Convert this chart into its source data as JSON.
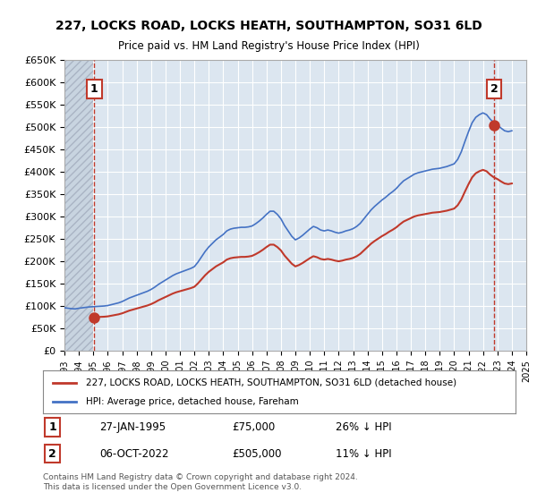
{
  "title": "227, LOCKS ROAD, LOCKS HEATH, SOUTHAMPTON, SO31 6LD",
  "subtitle": "Price paid vs. HM Land Registry's House Price Index (HPI)",
  "background_color": "#ffffff",
  "plot_bg_color": "#dce6f0",
  "hatch_color": "#c0c8d8",
  "grid_color": "#ffffff",
  "xmin": 1993,
  "xmax": 2025,
  "ymin": 0,
  "ymax": 650000,
  "yticks": [
    0,
    50000,
    100000,
    150000,
    200000,
    250000,
    300000,
    350000,
    400000,
    450000,
    500000,
    550000,
    600000,
    650000
  ],
  "ytick_labels": [
    "£0",
    "£50K",
    "£100K",
    "£150K",
    "£200K",
    "£250K",
    "£300K",
    "£350K",
    "£400K",
    "£450K",
    "£500K",
    "£550K",
    "£600K",
    "£650K"
  ],
  "xticks": [
    1993,
    1994,
    1995,
    1996,
    1997,
    1998,
    1999,
    2000,
    2001,
    2002,
    2003,
    2004,
    2005,
    2006,
    2007,
    2008,
    2009,
    2010,
    2011,
    2012,
    2013,
    2014,
    2015,
    2016,
    2017,
    2018,
    2019,
    2020,
    2021,
    2022,
    2023,
    2024,
    2025
  ],
  "sale1_x": 1995.07,
  "sale1_y": 75000,
  "sale2_x": 2022.76,
  "sale2_y": 505000,
  "hpi_line_color": "#4472c4",
  "sale_line_color": "#c0392b",
  "sale_marker_color": "#c0392b",
  "vline_color": "#c0392b",
  "legend_box_color": "#c0392b",
  "legend_label1": "227, LOCKS ROAD, LOCKS HEATH, SOUTHAMPTON, SO31 6LD (detached house)",
  "legend_label2": "HPI: Average price, detached house, Fareham",
  "annotation1": "1",
  "annotation2": "2",
  "info1_date": "27-JAN-1995",
  "info1_price": "£75,000",
  "info1_hpi": "26% ↓ HPI",
  "info2_date": "06-OCT-2022",
  "info2_price": "£505,000",
  "info2_hpi": "11% ↓ HPI",
  "footnote": "Contains HM Land Registry data © Crown copyright and database right 2024.\nThis data is licensed under the Open Government Licence v3.0.",
  "hpi_data_x": [
    1993.0,
    1993.25,
    1993.5,
    1993.75,
    1994.0,
    1994.25,
    1994.5,
    1994.75,
    1995.0,
    1995.25,
    1995.5,
    1995.75,
    1996.0,
    1996.25,
    1996.5,
    1996.75,
    1997.0,
    1997.25,
    1997.5,
    1997.75,
    1998.0,
    1998.25,
    1998.5,
    1998.75,
    1999.0,
    1999.25,
    1999.5,
    1999.75,
    2000.0,
    2000.25,
    2000.5,
    2000.75,
    2001.0,
    2001.25,
    2001.5,
    2001.75,
    2002.0,
    2002.25,
    2002.5,
    2002.75,
    2003.0,
    2003.25,
    2003.5,
    2003.75,
    2004.0,
    2004.25,
    2004.5,
    2004.75,
    2005.0,
    2005.25,
    2005.5,
    2005.75,
    2006.0,
    2006.25,
    2006.5,
    2006.75,
    2007.0,
    2007.25,
    2007.5,
    2007.75,
    2008.0,
    2008.25,
    2008.5,
    2008.75,
    2009.0,
    2009.25,
    2009.5,
    2009.75,
    2010.0,
    2010.25,
    2010.5,
    2010.75,
    2011.0,
    2011.25,
    2011.5,
    2011.75,
    2012.0,
    2012.25,
    2012.5,
    2012.75,
    2013.0,
    2013.25,
    2013.5,
    2013.75,
    2014.0,
    2014.25,
    2014.5,
    2014.75,
    2015.0,
    2015.25,
    2015.5,
    2015.75,
    2016.0,
    2016.25,
    2016.5,
    2016.75,
    2017.0,
    2017.25,
    2017.5,
    2017.75,
    2018.0,
    2018.25,
    2018.5,
    2018.75,
    2019.0,
    2019.25,
    2019.5,
    2019.75,
    2020.0,
    2020.25,
    2020.5,
    2020.75,
    2021.0,
    2021.25,
    2021.5,
    2021.75,
    2022.0,
    2022.25,
    2022.5,
    2022.75,
    2023.0,
    2023.25,
    2023.5,
    2023.75,
    2024.0
  ],
  "hpi_data_y": [
    96000,
    95000,
    94000,
    93500,
    95000,
    96000,
    97000,
    98000,
    98500,
    99000,
    99500,
    100000,
    101000,
    103000,
    105000,
    107000,
    110000,
    114000,
    118000,
    121000,
    124000,
    127000,
    130000,
    133000,
    137000,
    142000,
    148000,
    153000,
    158000,
    163000,
    168000,
    172000,
    175000,
    178000,
    181000,
    184000,
    188000,
    198000,
    210000,
    222000,
    232000,
    240000,
    248000,
    254000,
    260000,
    268000,
    272000,
    274000,
    275000,
    276000,
    276000,
    277000,
    279000,
    284000,
    290000,
    297000,
    305000,
    312000,
    312000,
    305000,
    295000,
    280000,
    268000,
    256000,
    248000,
    252000,
    258000,
    265000,
    272000,
    278000,
    275000,
    270000,
    268000,
    270000,
    268000,
    265000,
    263000,
    265000,
    268000,
    270000,
    273000,
    278000,
    285000,
    295000,
    305000,
    315000,
    323000,
    330000,
    337000,
    343000,
    350000,
    356000,
    363000,
    372000,
    380000,
    385000,
    390000,
    395000,
    398000,
    400000,
    402000,
    404000,
    406000,
    407000,
    408000,
    410000,
    412000,
    415000,
    418000,
    428000,
    445000,
    468000,
    490000,
    510000,
    522000,
    528000,
    532000,
    528000,
    518000,
    510000,
    505000,
    498000,
    492000,
    490000,
    492000
  ],
  "sale_line_x": [
    1995.07,
    1993.0
  ],
  "sale2_line_x": [
    2022.76,
    2022.76
  ]
}
